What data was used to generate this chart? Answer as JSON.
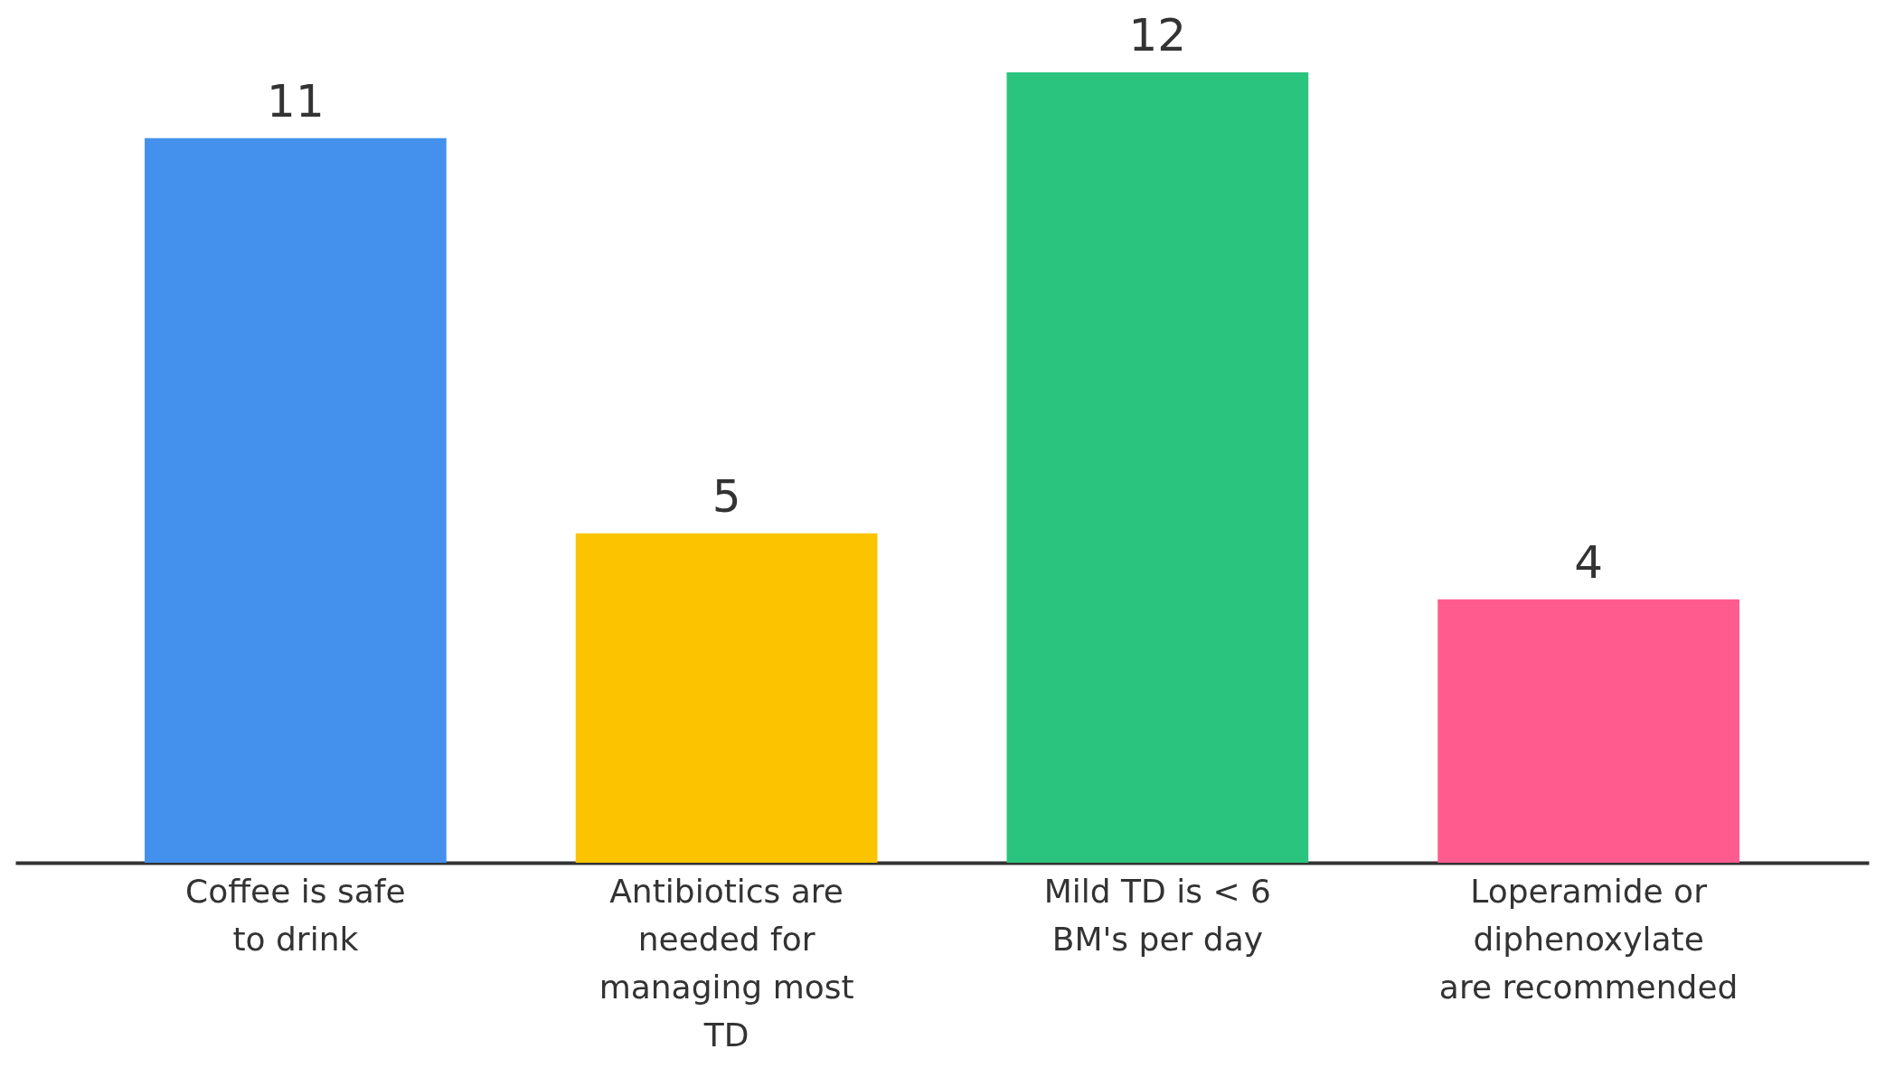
{
  "chart_data": {
    "type": "bar",
    "categories": [
      "Coffee is safe to drink",
      "Antibiotics are needed for managing most TD",
      "Mild TD is < 6 BM's per day",
      "Loperamide or diphenoxylate are recommended"
    ],
    "values": [
      11,
      5,
      12,
      4
    ],
    "colors": [
      "#4391ed",
      "#fcc400",
      "#2bc47f",
      "#ff5b8f"
    ],
    "ylim": [
      0,
      12
    ],
    "data_labels": true,
    "tick_labels": "x",
    "grid": false
  }
}
